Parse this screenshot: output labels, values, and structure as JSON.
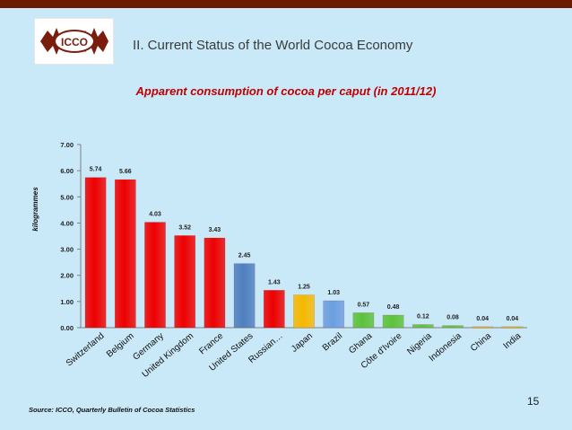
{
  "header": {
    "title": "II. Current Status of the World Cocoa Economy",
    "logo_text": "ICCO"
  },
  "source": "Source: ICCO, Quarterly Bulletin of Cocoa Statistics",
  "page_number": "15",
  "colors": {
    "background": "#c9e8f8",
    "topbar": "#6b1a00",
    "title": "#c00000"
  },
  "chart_data": {
    "type": "bar",
    "title": "Apparent consumption of cocoa per caput (in 2011/12)",
    "xlabel": "",
    "ylabel": "kilogrammes",
    "ylim": [
      0,
      7
    ],
    "yticks": [
      "0.00",
      "1.00",
      "2.00",
      "3.00",
      "4.00",
      "5.00",
      "6.00",
      "7.00"
    ],
    "grid": false,
    "categories": [
      "Switzerland",
      "Belgium",
      "Germany",
      "United Kingdom",
      "France",
      "United States",
      "Russian…",
      "Japan",
      "Brazil",
      "Ghana",
      "Côte d'Ivoire",
      "Nigeria",
      "Indonesia",
      "China",
      "India"
    ],
    "values": [
      5.74,
      5.66,
      4.03,
      3.52,
      3.43,
      2.45,
      1.43,
      1.25,
      1.03,
      0.57,
      0.48,
      0.12,
      0.08,
      0.04,
      0.04
    ],
    "labels": [
      "5.74",
      "5.66",
      "4.03",
      "3.52",
      "3.43",
      "2.45",
      "1.43",
      "1.25",
      "1.03",
      "0.57",
      "0.48",
      "0.12",
      "0.08",
      "0.04",
      "0.04"
    ],
    "bar_colors": [
      "#ee0000",
      "#ee0000",
      "#ee0000",
      "#ee0000",
      "#ee0000",
      "#4f7fbf",
      "#ee0000",
      "#f5b800",
      "#6c9ee0",
      "#5cc23a",
      "#5cc23a",
      "#5cc23a",
      "#5cc23a",
      "#f5b800",
      "#f5b800"
    ]
  }
}
